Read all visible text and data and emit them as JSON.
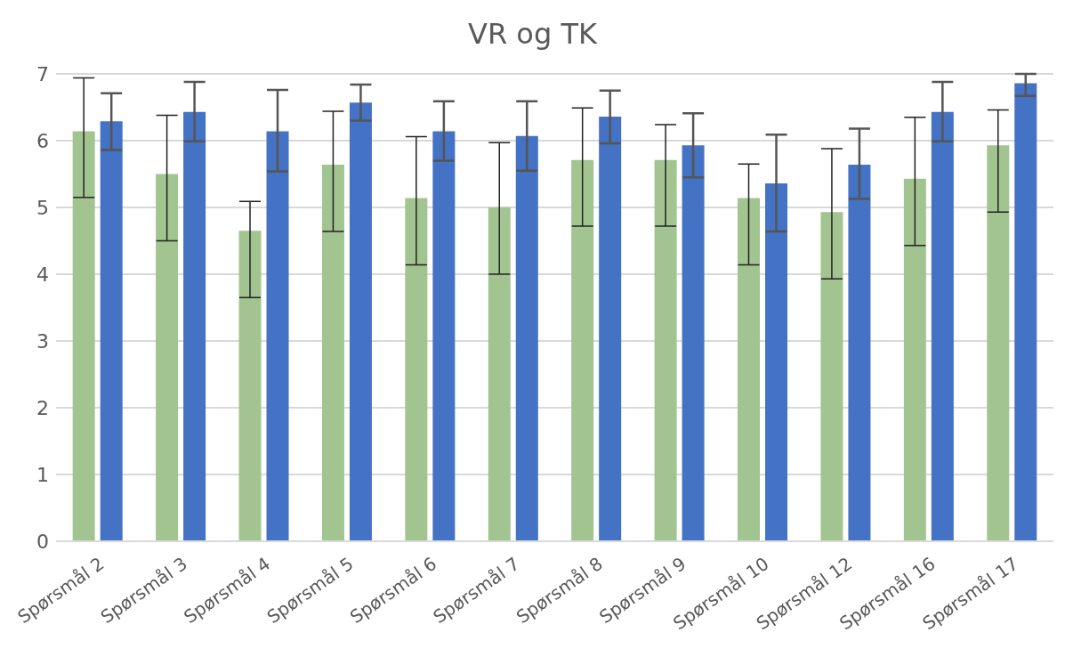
{
  "chart_data": {
    "type": "bar",
    "title": "VR og TK",
    "categories": [
      "Spørsmål 2",
      "Spørsmål 3",
      "Spørsmål 4",
      "Spørsmål 5",
      "Spørsmål 6",
      "Spørsmål 7",
      "Spørsmål 8",
      "Spørsmål 9",
      "Spørsmål 10",
      "Spørsmål 12",
      "Spørsmål 16",
      "Spørsmål 17"
    ],
    "series": [
      {
        "color": "#a2c490",
        "values": [
          6.14,
          5.5,
          4.65,
          5.64,
          5.14,
          5.0,
          5.71,
          5.71,
          5.14,
          4.93,
          5.43,
          5.93
        ],
        "errors": [
          [
            5.15,
            6.94
          ],
          [
            4.5,
            6.38
          ],
          [
            3.65,
            5.09
          ],
          [
            4.64,
            6.44
          ],
          [
            4.14,
            6.06
          ],
          [
            4.0,
            5.97
          ],
          [
            4.72,
            6.49
          ],
          [
            4.72,
            6.24
          ],
          [
            4.14,
            5.65
          ],
          [
            3.93,
            5.88
          ],
          [
            4.43,
            6.35
          ],
          [
            4.93,
            6.46
          ]
        ]
      },
      {
        "color": "#4472c4",
        "values": [
          6.29,
          6.43,
          6.14,
          6.57,
          6.14,
          6.07,
          6.36,
          5.93,
          5.36,
          5.64,
          6.43,
          6.86
        ],
        "errors": [
          [
            5.86,
            6.71
          ],
          [
            5.99,
            6.88
          ],
          [
            5.54,
            6.76
          ],
          [
            6.3,
            6.84
          ],
          [
            5.7,
            6.59
          ],
          [
            5.55,
            6.59
          ],
          [
            5.96,
            6.75
          ],
          [
            5.45,
            6.41
          ],
          [
            4.64,
            6.09
          ],
          [
            5.13,
            6.18
          ],
          [
            5.99,
            6.88
          ],
          [
            6.67,
            7.0
          ]
        ]
      }
    ],
    "ylim": [
      0,
      7
    ],
    "yticks": [
      0,
      1,
      2,
      3,
      4,
      5,
      6,
      7
    ],
    "grid": "y",
    "legend": false
  }
}
